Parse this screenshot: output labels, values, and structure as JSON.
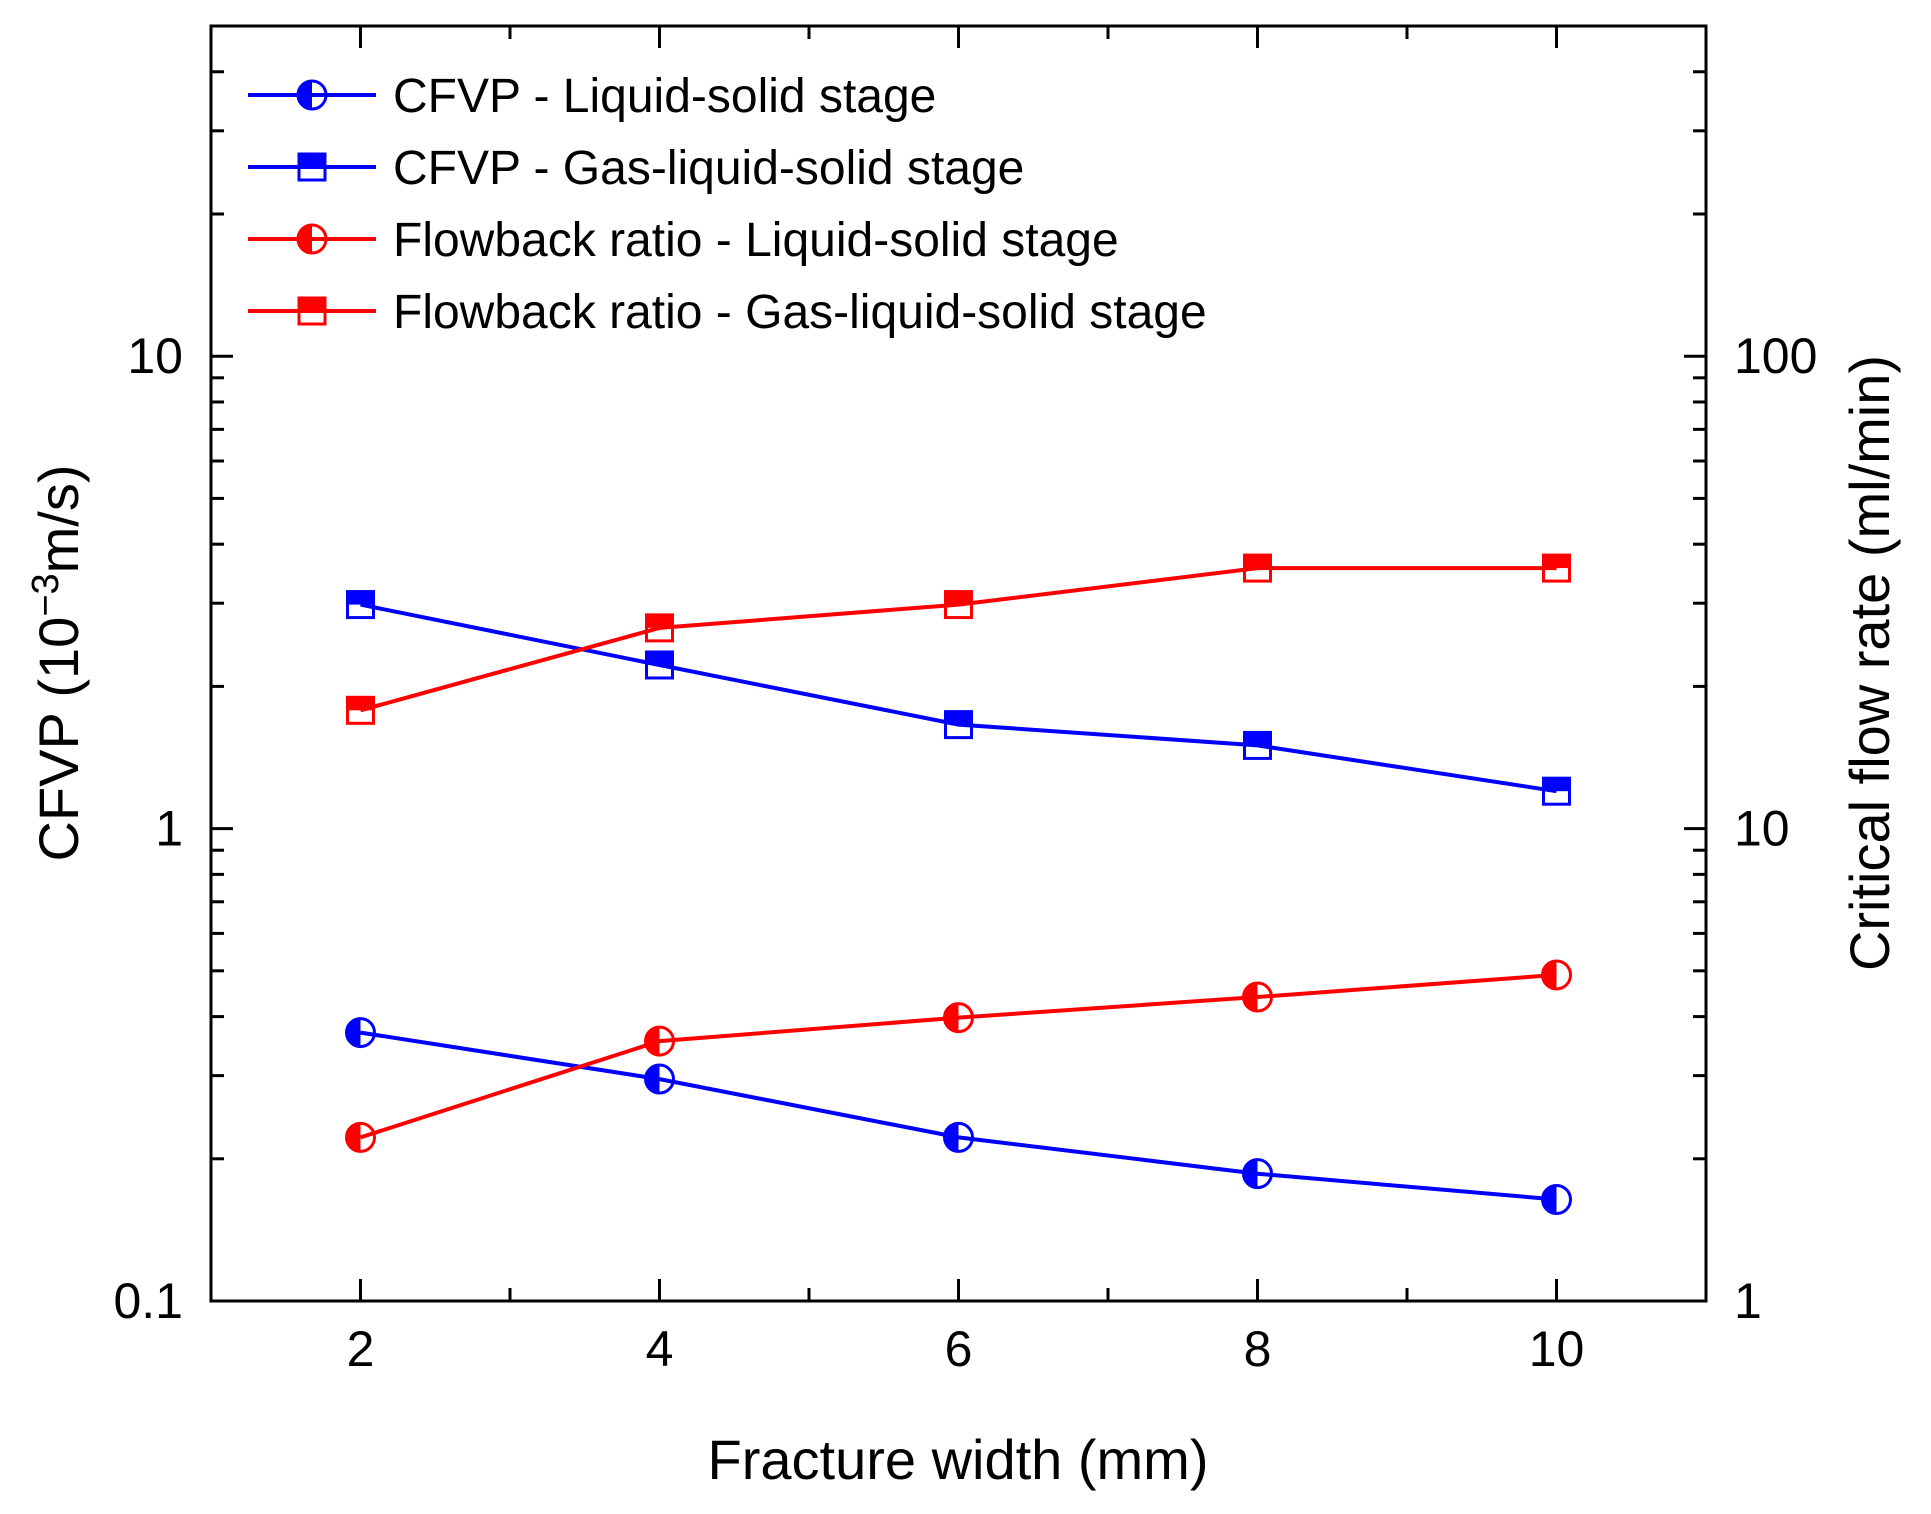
{
  "chart_data": {
    "type": "line",
    "xlabel": "Fracture width (mm)",
    "ylabel_left": {
      "text": "CFVP (10",
      "sup": "−3",
      "tail": "m/s)"
    },
    "ylabel_right": "Critical flow rate (ml/min)",
    "x_range": [
      1,
      11
    ],
    "x_ticks": [
      2,
      4,
      6,
      8,
      10
    ],
    "x_tick_labels": [
      "2",
      "4",
      "6",
      "8",
      "10"
    ],
    "y_left_scale": "log",
    "y_left_range": [
      0.1,
      50
    ],
    "y_left_ticks": [
      0.1,
      1,
      10
    ],
    "y_left_tick_labels": [
      "0.1",
      "1",
      "10"
    ],
    "y_right_scale": "log",
    "y_right_range": [
      1,
      500
    ],
    "y_right_ticks": [
      1,
      10,
      100
    ],
    "y_right_tick_labels": [
      "1",
      "10",
      "100"
    ],
    "legend_position": "top-left",
    "grid": false,
    "series": [
      {
        "name": "CFVP - Liquid-solid stage",
        "axis": "left",
        "marker": "circle",
        "color": "#0000ff",
        "x": [
          2,
          4,
          6,
          8,
          10
        ],
        "y": [
          0.37,
          0.295,
          0.222,
          0.186,
          0.164
        ]
      },
      {
        "name": "CFVP - Gas-liquid-solid stage",
        "axis": "left",
        "marker": "square",
        "color": "#0000ff",
        "x": [
          2,
          4,
          6,
          8,
          10
        ],
        "y": [
          2.98,
          2.22,
          1.66,
          1.5,
          1.2
        ]
      },
      {
        "name": "Flowback ratio - Liquid-solid stage",
        "axis": "right",
        "marker": "circle",
        "color": "#ff0000",
        "x": [
          2,
          4,
          6,
          8,
          10
        ],
        "y": [
          2.22,
          3.55,
          3.98,
          4.4,
          4.9
        ]
      },
      {
        "name": "Flowback ratio - Gas-liquid-solid stage",
        "axis": "right",
        "marker": "square",
        "color": "#ff0000",
        "x": [
          2,
          4,
          6,
          8,
          10
        ],
        "y": [
          17.8,
          26.6,
          29.8,
          35.6,
          35.6
        ]
      }
    ]
  }
}
